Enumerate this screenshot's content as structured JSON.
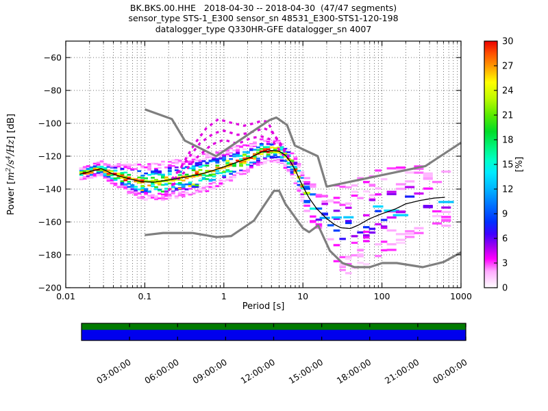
{
  "title": {
    "line1": "BK.BKS.00.HHE   2018-04-30 -- 2018-04-30  (47/47 segments)",
    "line2": "sensor_type STS-1_E300 sensor_sn 48531_E300-STS1-120-198",
    "line3": "datalogger_type Q330HR-GFE datalogger_sn 4007"
  },
  "axes": {
    "xlabel": "Period [s]",
    "ylabel_parts": [
      {
        "t": "Power [",
        "style": "plain"
      },
      {
        "t": "m",
        "style": "math"
      },
      {
        "t": "2",
        "style": "sup"
      },
      {
        "t": "/",
        "style": "math"
      },
      {
        "t": "s",
        "style": "math"
      },
      {
        "t": "4",
        "style": "sup"
      },
      {
        "t": "/",
        "style": "math"
      },
      {
        "t": "Hz",
        "style": "math"
      },
      {
        "t": "] [dB]",
        "style": "plain"
      }
    ],
    "x_ticks": [
      {
        "v": 0.01,
        "label": "0.01"
      },
      {
        "v": 0.1,
        "label": "0.1"
      },
      {
        "v": 1,
        "label": "1"
      },
      {
        "v": 10,
        "label": "10"
      },
      {
        "v": 100,
        "label": "100"
      },
      {
        "v": 1000,
        "label": "1000"
      }
    ],
    "y_ticks": [
      {
        "v": -60,
        "label": "−60"
      },
      {
        "v": -80,
        "label": "−80"
      },
      {
        "v": -100,
        "label": "−100"
      },
      {
        "v": -120,
        "label": "−120"
      },
      {
        "v": -140,
        "label": "−140"
      },
      {
        "v": -160,
        "label": "−160"
      },
      {
        "v": -180,
        "label": "−180"
      },
      {
        "v": -200,
        "label": "−200"
      }
    ]
  },
  "colorbar": {
    "label": "[%]",
    "vmin": 0,
    "vmax": 30,
    "ticks": [
      {
        "v": 0,
        "label": "0"
      },
      {
        "v": 3,
        "label": "3"
      },
      {
        "v": 6,
        "label": "6"
      },
      {
        "v": 9,
        "label": "9"
      },
      {
        "v": 12,
        "label": "12"
      },
      {
        "v": 15,
        "label": "15"
      },
      {
        "v": 18,
        "label": "18"
      },
      {
        "v": 21,
        "label": "21"
      },
      {
        "v": 24,
        "label": "24"
      },
      {
        "v": 27,
        "label": "27"
      },
      {
        "v": 30,
        "label": "30"
      }
    ]
  },
  "chart_data": {
    "type": "heatmap",
    "description": "PPSD probabilistic power spectral density histogram with Peterson noise models",
    "xlabel": "Period [s]",
    "ylabel": "Power [m^2/s^4/Hz] [dB]",
    "xscale": "log",
    "xlim": [
      0.01,
      1000
    ],
    "ylim": [
      -200,
      -50
    ],
    "grid": true,
    "colorbar_label": "[%]",
    "colorbar_range": [
      0,
      30
    ],
    "colormap_stops": [
      [
        0,
        "#ffffff"
      ],
      [
        2,
        "#ffaaff"
      ],
      [
        3.5,
        "#ff00ff"
      ],
      [
        5,
        "#a000f0"
      ],
      [
        6.5,
        "#4000ff"
      ],
      [
        8,
        "#0030ff"
      ],
      [
        10,
        "#0070ff"
      ],
      [
        12,
        "#00b4ff"
      ],
      [
        14,
        "#00ebff"
      ],
      [
        15.5,
        "#00ffc8"
      ],
      [
        17,
        "#00f582"
      ],
      [
        19,
        "#00dc28"
      ],
      [
        21,
        "#5aeb00"
      ],
      [
        23,
        "#befa00"
      ],
      [
        25,
        "#ffff00"
      ],
      [
        27,
        "#ff9600"
      ],
      [
        28.5,
        "#ff5000"
      ],
      [
        30,
        "#eb0000"
      ]
    ],
    "noise_models": {
      "color": "#7f7f7f",
      "nhnm": [
        [
          0.1,
          -91.5
        ],
        [
          0.22,
          -97.4
        ],
        [
          0.32,
          -110.5
        ],
        [
          0.8,
          -120.0
        ],
        [
          3.8,
          -98.0
        ],
        [
          4.6,
          -96.5
        ],
        [
          6.3,
          -101.0
        ],
        [
          7.9,
          -113.5
        ],
        [
          15.4,
          -120.0
        ],
        [
          20.0,
          -138.5
        ],
        [
          354.8,
          -126.0
        ],
        [
          1000,
          -111.8
        ]
      ],
      "nlnm": [
        [
          0.1,
          -168.0
        ],
        [
          0.17,
          -166.7
        ],
        [
          0.4,
          -166.7
        ],
        [
          0.8,
          -169.2
        ],
        [
          1.24,
          -168.6
        ],
        [
          2.4,
          -159.2
        ],
        [
          4.3,
          -141.1
        ],
        [
          5.0,
          -141.1
        ],
        [
          6.0,
          -149.0
        ],
        [
          10.0,
          -163.8
        ],
        [
          12.0,
          -166.2
        ],
        [
          15.6,
          -162.1
        ],
        [
          21.9,
          -177.5
        ],
        [
          31.6,
          -185.0
        ],
        [
          45.0,
          -187.5
        ],
        [
          70.0,
          -187.5
        ],
        [
          101.0,
          -185.0
        ],
        [
          154.0,
          -185.0
        ],
        [
          328.0,
          -187.5
        ],
        [
          600.0,
          -184.4
        ],
        [
          1000,
          -178.5
        ]
      ]
    },
    "mode_color": "#000000",
    "band_profile": [
      [
        0.015,
        -131.0,
        1.8,
        30
      ],
      [
        0.02,
        -129.5,
        2.0,
        30
      ],
      [
        0.028,
        -127.5,
        2.4,
        30
      ],
      [
        0.04,
        -131.0,
        3.5,
        30
      ],
      [
        0.06,
        -133.5,
        4.5,
        30
      ],
      [
        0.09,
        -135.5,
        5.5,
        28
      ],
      [
        0.13,
        -135.8,
        6.0,
        26
      ],
      [
        0.2,
        -134.5,
        6.0,
        26
      ],
      [
        0.3,
        -133.0,
        6.2,
        26
      ],
      [
        0.5,
        -131.0,
        6.2,
        27
      ],
      [
        0.7,
        -129.0,
        6.0,
        27
      ],
      [
        1.0,
        -126.5,
        5.5,
        28
      ],
      [
        1.5,
        -123.5,
        5.0,
        28
      ],
      [
        2.0,
        -121.5,
        4.5,
        29
      ],
      [
        3.0,
        -117.5,
        4.0,
        30
      ],
      [
        4.0,
        -116.5,
        3.6,
        30
      ],
      [
        5.0,
        -117.0,
        3.6,
        30
      ],
      [
        6.0,
        -119.5,
        4.0,
        30
      ],
      [
        7.0,
        -123.5,
        4.2,
        30
      ],
      [
        8.0,
        -128.5,
        4.5,
        28
      ],
      [
        10.0,
        -138.5,
        5.0,
        26
      ],
      [
        12.0,
        -145.5,
        5.5,
        22
      ],
      [
        15.0,
        -152.0,
        6.5,
        16
      ],
      [
        20.0,
        -158.0,
        9.0,
        10
      ],
      [
        25.0,
        -161.5,
        12.0,
        8
      ],
      [
        30.0,
        -163.5,
        14.0,
        8
      ],
      [
        40.0,
        -164.0,
        15.0,
        8
      ],
      [
        50.0,
        -162.0,
        15.0,
        8
      ],
      [
        70.0,
        -158.0,
        14.5,
        8
      ],
      [
        100.0,
        -155.0,
        14.0,
        8
      ],
      [
        150.0,
        -152.0,
        13.0,
        8
      ],
      [
        200.0,
        -149.0,
        12.0,
        8
      ],
      [
        300.0,
        -147.0,
        11.0,
        8
      ],
      [
        450.0,
        -145.5,
        10.0,
        8
      ],
      [
        630.0,
        -145.0,
        9.0,
        8
      ]
    ],
    "transients": {
      "color": "#e000e0",
      "arcs": [
        [
          [
            0.22,
            -138
          ],
          [
            0.3,
            -125
          ],
          [
            0.42,
            -113
          ],
          [
            0.6,
            -103
          ],
          [
            0.85,
            -97.5
          ],
          [
            1.2,
            -99.5
          ],
          [
            1.8,
            -101.5
          ],
          [
            2.4,
            -100
          ],
          [
            3.0,
            -98.5
          ],
          [
            3.6,
            -99
          ],
          [
            4.2,
            -106
          ],
          [
            5.0,
            -112
          ],
          [
            6.0,
            -118
          ],
          [
            7.5,
            -126
          ]
        ],
        [
          [
            0.22,
            -134
          ],
          [
            0.32,
            -124
          ],
          [
            0.5,
            -112
          ],
          [
            0.75,
            -106
          ],
          [
            1.0,
            -104.5
          ],
          [
            1.5,
            -107
          ],
          [
            2.0,
            -106
          ],
          [
            2.6,
            -104.5
          ],
          [
            3.2,
            -103
          ],
          [
            4.0,
            -105
          ],
          [
            5.0,
            -111
          ],
          [
            6.0,
            -117
          ],
          [
            7.0,
            -122
          ]
        ],
        [
          [
            0.2,
            -141
          ],
          [
            0.3,
            -131
          ],
          [
            0.45,
            -121
          ],
          [
            0.7,
            -113
          ],
          [
            1.0,
            -110
          ],
          [
            1.5,
            -112.5
          ],
          [
            2.2,
            -109
          ],
          [
            3.0,
            -108
          ],
          [
            4.0,
            -110
          ],
          [
            5.0,
            -116
          ],
          [
            6.2,
            -122
          ]
        ]
      ]
    },
    "histogram_style": {
      "seed": 42,
      "cell_db": 1.1
    }
  },
  "timeline": {
    "top_color": "#007a00",
    "bottom_color": "#0000ee",
    "start_hour": 0,
    "end_hour": 24,
    "tick_hours": [
      3,
      6,
      9,
      12,
      15,
      18,
      21,
      24
    ],
    "labels": [
      "03:00:00",
      "06:00:00",
      "09:00:00",
      "12:00:00",
      "15:00:00",
      "18:00:00",
      "21:00:00",
      "00:00:00"
    ]
  }
}
